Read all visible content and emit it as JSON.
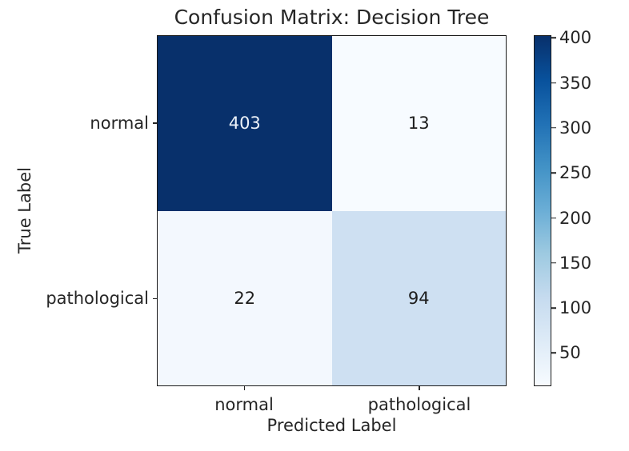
{
  "figure": {
    "background": "#ffffff",
    "text_color": "#262626",
    "axis_line_color": "#1a1a1a"
  },
  "chart_data": {
    "type": "heatmap",
    "title": "Confusion Matrix: Decision Tree",
    "xlabel": "Predicted Label",
    "ylabel": "True Label",
    "col_labels": [
      "normal",
      "pathological"
    ],
    "row_labels": [
      "normal",
      "pathological"
    ],
    "matrix": [
      [
        403,
        13
      ],
      [
        22,
        94
      ]
    ],
    "cell_colors": [
      [
        "#08306b",
        "#f7fbff"
      ],
      [
        "#f3f8fe",
        "#cee0f2"
      ]
    ],
    "cell_text_colors": [
      [
        "#edf2f9",
        "#1c1c1c"
      ],
      [
        "#1c1c1c",
        "#1c1c1c"
      ]
    ],
    "grid": false,
    "legend_position": "right-colorbar",
    "colormap": {
      "name": "Blues",
      "stops": [
        "#f7fbff",
        "#deebf7",
        "#c6dbef",
        "#9ecae1",
        "#6baed6",
        "#4292c6",
        "#2171b5",
        "#08519c",
        "#08306b"
      ]
    },
    "colorbar": {
      "vmin": 13,
      "vmax": 403,
      "ticks": [
        50,
        100,
        150,
        200,
        250,
        300,
        350,
        400
      ]
    }
  }
}
